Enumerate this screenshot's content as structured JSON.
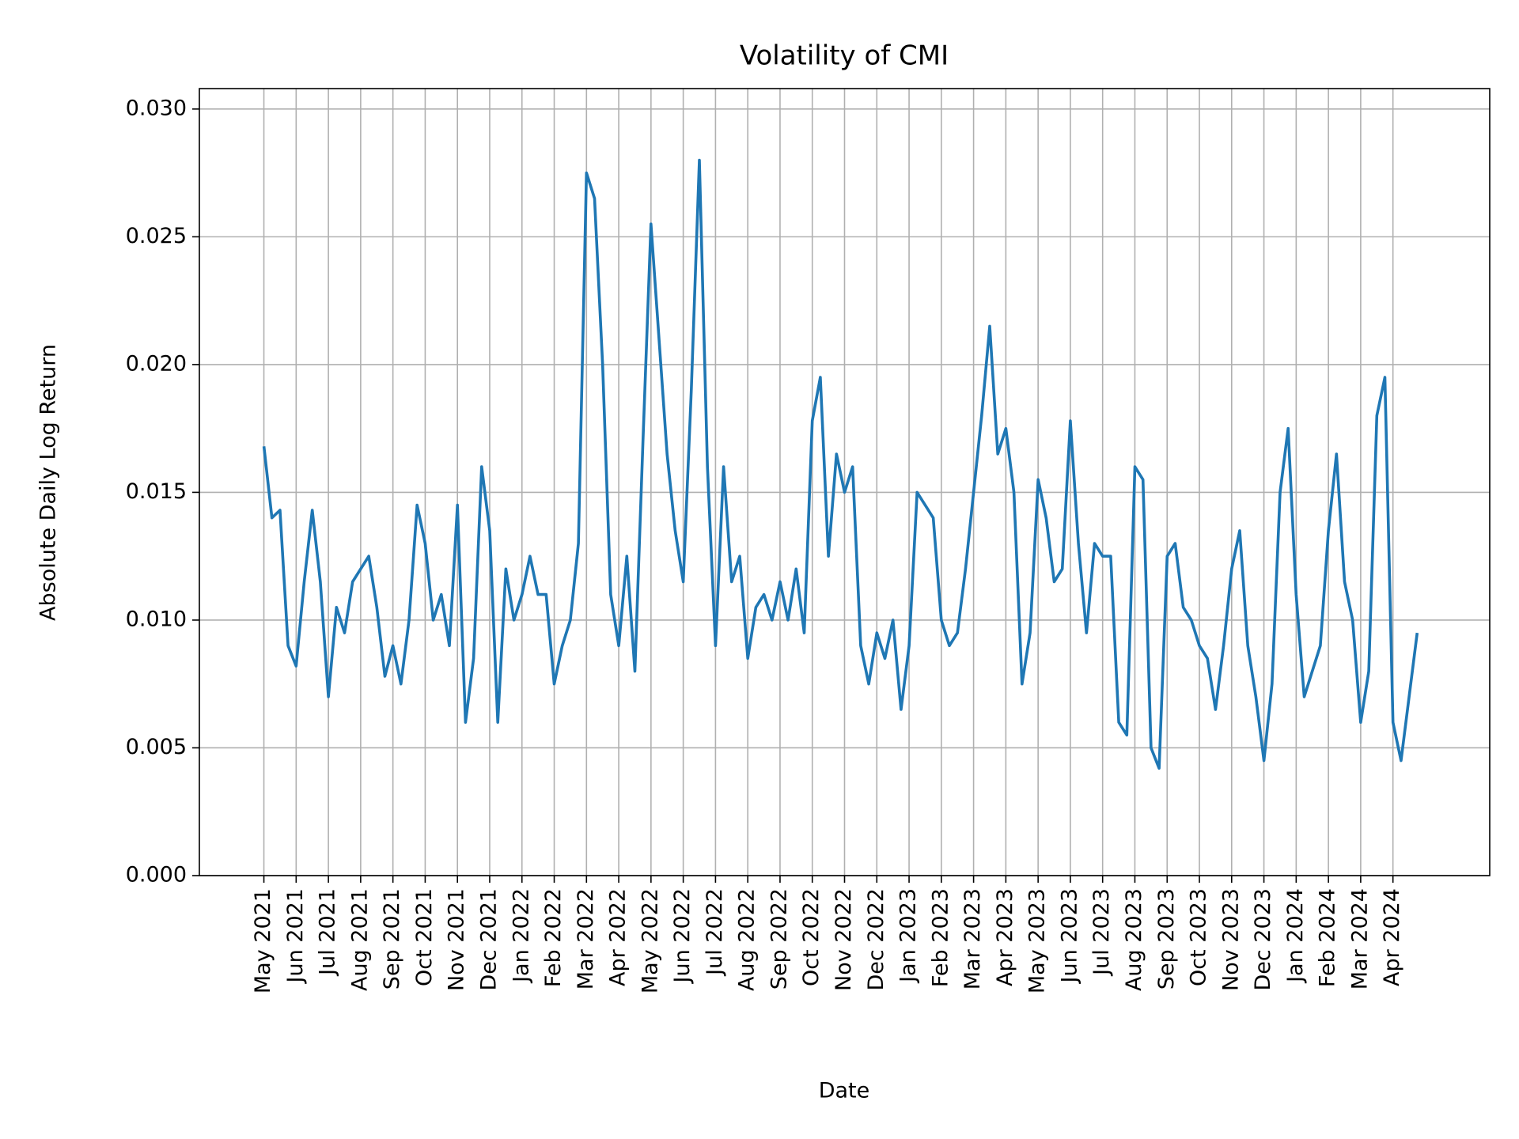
{
  "chart_data": {
    "type": "line",
    "title": "Volatility of CMI",
    "x_label": "Date",
    "y_label": "Absolute Daily Log Return",
    "color": "#1f77b4",
    "grid": true,
    "x": [
      "2021-05",
      "2021-05",
      "2021-05",
      "2021-05",
      "2021-06",
      "2021-06",
      "2021-06",
      "2021-06",
      "2021-07",
      "2021-07",
      "2021-07",
      "2021-07",
      "2021-08",
      "2021-08",
      "2021-08",
      "2021-08",
      "2021-09",
      "2021-09",
      "2021-09",
      "2021-09",
      "2021-10",
      "2021-10",
      "2021-10",
      "2021-10",
      "2021-11",
      "2021-11",
      "2021-11",
      "2021-11",
      "2021-12",
      "2021-12",
      "2021-12",
      "2021-12",
      "2022-01",
      "2022-01",
      "2022-01",
      "2022-01",
      "2022-02",
      "2022-02",
      "2022-02",
      "2022-02",
      "2022-03",
      "2022-03",
      "2022-03",
      "2022-03",
      "2022-04",
      "2022-04",
      "2022-04",
      "2022-04",
      "2022-05",
      "2022-05",
      "2022-05",
      "2022-05",
      "2022-06",
      "2022-06",
      "2022-06",
      "2022-06",
      "2022-07",
      "2022-07",
      "2022-07",
      "2022-07",
      "2022-08",
      "2022-08",
      "2022-08",
      "2022-08",
      "2022-09",
      "2022-09",
      "2022-09",
      "2022-09",
      "2022-10",
      "2022-10",
      "2022-10",
      "2022-10",
      "2022-11",
      "2022-11",
      "2022-11",
      "2022-11",
      "2022-12",
      "2022-12",
      "2022-12",
      "2022-12",
      "2023-01",
      "2023-01",
      "2023-01",
      "2023-01",
      "2023-02",
      "2023-02",
      "2023-02",
      "2023-02",
      "2023-03",
      "2023-03",
      "2023-03",
      "2023-03",
      "2023-04",
      "2023-04",
      "2023-04",
      "2023-04",
      "2023-05",
      "2023-05",
      "2023-05",
      "2023-05",
      "2023-06",
      "2023-06",
      "2023-06",
      "2023-06",
      "2023-07",
      "2023-07",
      "2023-07",
      "2023-07",
      "2023-08",
      "2023-08",
      "2023-08",
      "2023-08",
      "2023-09",
      "2023-09",
      "2023-09",
      "2023-09",
      "2023-10",
      "2023-10",
      "2023-10",
      "2023-10",
      "2023-11",
      "2023-11",
      "2023-11",
      "2023-11",
      "2023-12",
      "2023-12",
      "2023-12",
      "2023-12",
      "2024-01",
      "2024-01",
      "2024-01",
      "2024-01",
      "2024-02",
      "2024-02",
      "2024-02",
      "2024-02",
      "2024-03",
      "2024-03",
      "2024-03",
      "2024-03",
      "2024-04",
      "2024-04",
      "2024-04",
      "2024-04"
    ],
    "values": [
      0.0168,
      0.014,
      0.0143,
      0.009,
      0.0082,
      0.0115,
      0.0143,
      0.0115,
      0.007,
      0.0105,
      0.0095,
      0.0115,
      0.012,
      0.0125,
      0.0105,
      0.0078,
      0.009,
      0.0075,
      0.01,
      0.0145,
      0.013,
      0.01,
      0.011,
      0.009,
      0.0145,
      0.006,
      0.0085,
      0.016,
      0.0135,
      0.006,
      0.012,
      0.01,
      0.011,
      0.0125,
      0.011,
      0.011,
      0.0075,
      0.009,
      0.01,
      0.013,
      0.0275,
      0.0265,
      0.02,
      0.011,
      0.009,
      0.0125,
      0.008,
      0.017,
      0.0255,
      0.021,
      0.0165,
      0.0135,
      0.0115,
      0.019,
      0.028,
      0.016,
      0.009,
      0.016,
      0.0115,
      0.0125,
      0.0085,
      0.0105,
      0.011,
      0.01,
      0.0115,
      0.01,
      0.012,
      0.0095,
      0.0178,
      0.0195,
      0.0125,
      0.0165,
      0.015,
      0.016,
      0.009,
      0.0075,
      0.0095,
      0.0085,
      0.01,
      0.0065,
      0.009,
      0.015,
      0.0145,
      0.014,
      0.01,
      0.009,
      0.0095,
      0.012,
      0.015,
      0.018,
      0.0215,
      0.0165,
      0.0175,
      0.015,
      0.0075,
      0.0095,
      0.0155,
      0.014,
      0.0115,
      0.012,
      0.0178,
      0.013,
      0.0095,
      0.013,
      0.0125,
      0.0125,
      0.006,
      0.0055,
      0.016,
      0.0155,
      0.005,
      0.0042,
      0.0125,
      0.013,
      0.0105,
      0.01,
      0.009,
      0.0085,
      0.0065,
      0.009,
      0.012,
      0.0135,
      0.009,
      0.007,
      0.0045,
      0.0075,
      0.015,
      0.0175,
      0.011,
      0.007,
      0.008,
      0.009,
      0.0135,
      0.0165,
      0.0115,
      0.01,
      0.006,
      0.008,
      0.018,
      0.0195,
      0.006,
      0.0045,
      0.007,
      0.0095
    ],
    "xlim": [
      "2021-03",
      "2024-07"
    ],
    "xticks": [
      {
        "value": "2021-05",
        "label": "May 2021"
      },
      {
        "value": "2021-06",
        "label": "Jun 2021"
      },
      {
        "value": "2021-07",
        "label": "Jul 2021"
      },
      {
        "value": "2021-08",
        "label": "Aug 2021"
      },
      {
        "value": "2021-09",
        "label": "Sep 2021"
      },
      {
        "value": "2021-10",
        "label": "Oct 2021"
      },
      {
        "value": "2021-11",
        "label": "Nov 2021"
      },
      {
        "value": "2021-12",
        "label": "Dec 2021"
      },
      {
        "value": "2022-01",
        "label": "Jan 2022"
      },
      {
        "value": "2022-02",
        "label": "Feb 2022"
      },
      {
        "value": "2022-03",
        "label": "Mar 2022"
      },
      {
        "value": "2022-04",
        "label": "Apr 2022"
      },
      {
        "value": "2022-05",
        "label": "May 2022"
      },
      {
        "value": "2022-06",
        "label": "Jun 2022"
      },
      {
        "value": "2022-07",
        "label": "Jul 2022"
      },
      {
        "value": "2022-08",
        "label": "Aug 2022"
      },
      {
        "value": "2022-09",
        "label": "Sep 2022"
      },
      {
        "value": "2022-10",
        "label": "Oct 2022"
      },
      {
        "value": "2022-11",
        "label": "Nov 2022"
      },
      {
        "value": "2022-12",
        "label": "Dec 2022"
      },
      {
        "value": "2023-01",
        "label": "Jan 2023"
      },
      {
        "value": "2023-02",
        "label": "Feb 2023"
      },
      {
        "value": "2023-03",
        "label": "Mar 2023"
      },
      {
        "value": "2023-04",
        "label": "Apr 2023"
      },
      {
        "value": "2023-05",
        "label": "May 2023"
      },
      {
        "value": "2023-06",
        "label": "Jun 2023"
      },
      {
        "value": "2023-07",
        "label": "Jul 2023"
      },
      {
        "value": "2023-08",
        "label": "Aug 2023"
      },
      {
        "value": "2023-09",
        "label": "Sep 2023"
      },
      {
        "value": "2023-10",
        "label": "Oct 2023"
      },
      {
        "value": "2023-11",
        "label": "Nov 2023"
      },
      {
        "value": "2023-12",
        "label": "Dec 2023"
      },
      {
        "value": "2024-01",
        "label": "Jan 2024"
      },
      {
        "value": "2024-02",
        "label": "Feb 2024"
      },
      {
        "value": "2024-03",
        "label": "Mar 2024"
      },
      {
        "value": "2024-04",
        "label": "Apr 2024"
      }
    ],
    "ylim": [
      0,
      0.0308
    ],
    "yticks": [
      {
        "value": 0,
        "label": "0.000"
      },
      {
        "value": 0.005,
        "label": "0.005"
      },
      {
        "value": 0.01,
        "label": "0.010"
      },
      {
        "value": 0.015,
        "label": "0.015"
      },
      {
        "value": 0.02,
        "label": "0.020"
      },
      {
        "value": 0.025,
        "label": "0.025"
      },
      {
        "value": 0.03,
        "label": "0.030"
      }
    ]
  }
}
